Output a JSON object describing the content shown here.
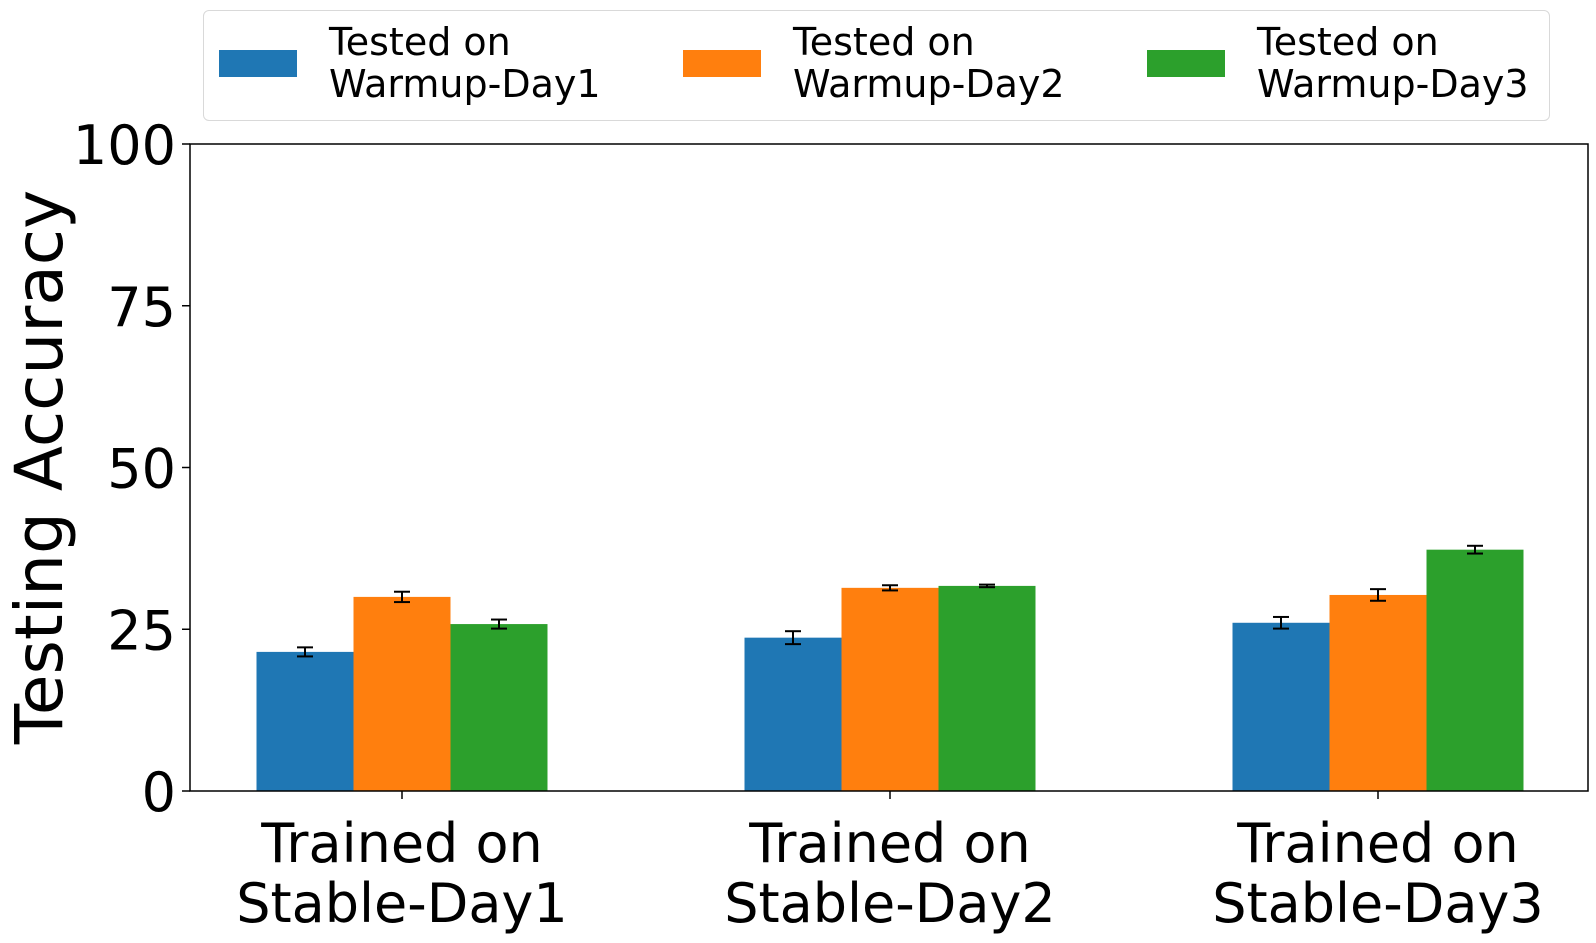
{
  "chart_data": {
    "type": "bar",
    "ylabel": "Testing Accuracy",
    "xlabel": "",
    "ylim": [
      0,
      100
    ],
    "yticks": [
      0,
      25,
      50,
      75,
      100
    ],
    "grid": false,
    "legend_position": "top",
    "categories": [
      "Trained on\nStable-Day1",
      "Trained on\nStable-Day2",
      "Trained on\nStable-Day3"
    ],
    "series": [
      {
        "name": "Tested on\nWarmup-Day1",
        "color": "#1f77b4",
        "values": [
          21.5,
          23.7,
          26.0
        ],
        "errors": [
          0.7,
          1.0,
          0.9
        ]
      },
      {
        "name": "Tested on\nWarmup-Day2",
        "color": "#ff7f0e",
        "values": [
          30.0,
          31.4,
          30.3
        ],
        "errors": [
          0.8,
          0.4,
          0.9
        ]
      },
      {
        "name": "Tested on\nWarmup-Day3",
        "color": "#2ca02c",
        "values": [
          25.8,
          31.7,
          37.3
        ],
        "errors": [
          0.7,
          0.2,
          0.6
        ]
      }
    ]
  }
}
